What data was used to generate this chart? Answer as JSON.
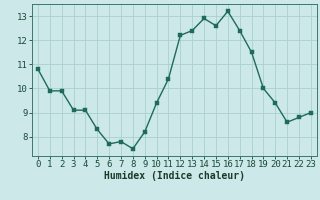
{
  "x": [
    0,
    1,
    2,
    3,
    4,
    5,
    6,
    7,
    8,
    9,
    10,
    11,
    12,
    13,
    14,
    15,
    16,
    17,
    18,
    19,
    20,
    21,
    22,
    23
  ],
  "y": [
    10.8,
    9.9,
    9.9,
    9.1,
    9.1,
    8.3,
    7.7,
    7.8,
    7.5,
    8.2,
    9.4,
    10.4,
    12.2,
    12.4,
    12.9,
    12.6,
    13.2,
    12.4,
    11.5,
    10.0,
    9.4,
    8.6,
    8.8,
    9.0
  ],
  "xlabel": "Humidex (Indice chaleur)",
  "ylim": [
    7.2,
    13.5
  ],
  "xlim": [
    -0.5,
    23.5
  ],
  "yticks": [
    8,
    9,
    10,
    11,
    12,
    13
  ],
  "xticks": [
    0,
    1,
    2,
    3,
    4,
    5,
    6,
    7,
    8,
    9,
    10,
    11,
    12,
    13,
    14,
    15,
    16,
    17,
    18,
    19,
    20,
    21,
    22,
    23
  ],
  "line_color": "#1e6b5a",
  "marker_color": "#1e6b5a",
  "bg_color": "#cce8e8",
  "grid_color": "#aad0d0",
  "axis_color": "#3a7a6a",
  "tick_color": "#1a4a3a",
  "xlabel_color": "#1a3a2a",
  "xlabel_fontsize": 7.0,
  "tick_fontsize": 6.5,
  "line_width": 1.0,
  "marker_size": 2.5
}
